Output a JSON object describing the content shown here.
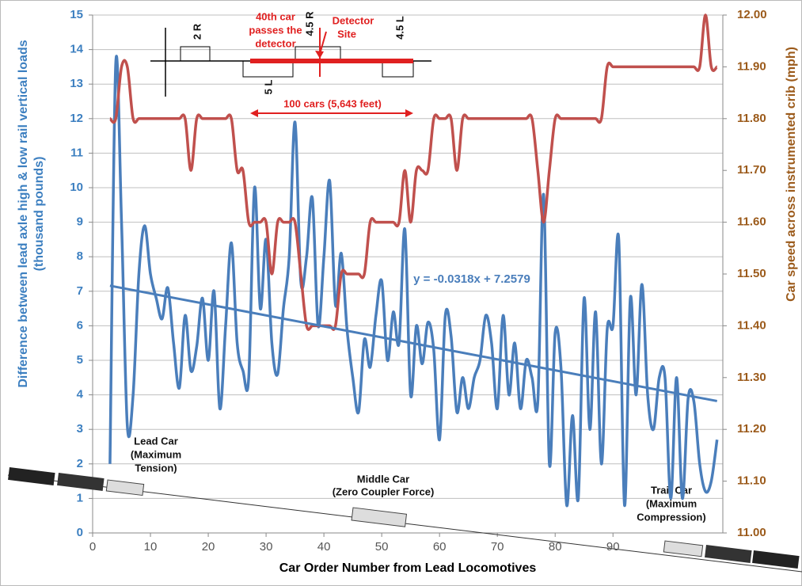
{
  "chart_data": {
    "type": "line",
    "xlabel": "Car Order Number from Lead Locomotives",
    "ylabel": [
      "Difference between lead axle high & low rail vertical loads",
      "(thousand pounds)"
    ],
    "y2label": "Car speed across instrumented crib (mph)",
    "xlim": [
      0,
      109
    ],
    "xticks": [
      0,
      10,
      20,
      30,
      40,
      50,
      60,
      70,
      80,
      90
    ],
    "ylim": [
      0,
      15
    ],
    "yticks": [
      0,
      1,
      2,
      3,
      4,
      5,
      6,
      7,
      8,
      9,
      10,
      11,
      12,
      13,
      14,
      15
    ],
    "y2lim": [
      11,
      12
    ],
    "y2ticks": [
      {
        "value": 11,
        "label": "11.00"
      },
      {
        "value": 11.1,
        "label": "11.10"
      },
      {
        "value": 11.2,
        "label": "11.20"
      },
      {
        "value": 11.3,
        "label": "11.30"
      },
      {
        "value": 11.4,
        "label": "11.40"
      },
      {
        "value": 11.5,
        "label": "11.50"
      },
      {
        "value": 11.6,
        "label": "11.60"
      },
      {
        "value": 11.7,
        "label": "11.70"
      },
      {
        "value": 11.8,
        "label": "11.80"
      },
      {
        "value": 11.9,
        "label": "11.90"
      },
      {
        "value": 12,
        "label": "12.00"
      }
    ],
    "grid": true,
    "x": [
      3,
      4,
      5,
      6,
      7,
      8,
      9,
      10,
      11,
      12,
      13,
      14,
      15,
      16,
      17,
      18,
      19,
      20,
      21,
      22,
      23,
      24,
      25,
      26,
      27,
      28,
      29,
      30,
      31,
      32,
      33,
      34,
      35,
      36,
      37,
      38,
      39,
      40,
      41,
      42,
      43,
      44,
      45,
      46,
      47,
      48,
      49,
      50,
      51,
      52,
      53,
      54,
      55,
      56,
      57,
      58,
      59,
      60,
      61,
      62,
      63,
      64,
      65,
      66,
      67,
      68,
      69,
      70,
      71,
      72,
      73,
      74,
      75,
      76,
      77,
      78,
      79,
      80,
      81,
      82,
      83,
      84,
      85,
      86,
      87,
      88,
      89,
      90,
      91,
      92,
      93,
      94,
      95,
      96,
      97,
      98,
      99,
      100,
      101,
      102,
      103,
      104,
      105,
      106,
      107,
      108
    ],
    "series": [
      {
        "color": "#4a7ebb",
        "values": [
          2.0,
          13.6,
          9.0,
          3.1,
          4.0,
          7.5,
          8.9,
          7.5,
          6.8,
          6.2,
          7.1,
          5.5,
          4.2,
          6.3,
          4.7,
          5.4,
          6.8,
          5.0,
          7.0,
          3.6,
          6.0,
          8.4,
          5.5,
          4.7,
          4.5,
          10.0,
          6.5,
          8.5,
          5.5,
          4.6,
          6.5,
          8.0,
          11.9,
          7.3,
          8.0,
          9.7,
          6.0,
          8.0,
          10.2,
          6.6,
          8.1,
          5.9,
          4.5,
          3.5,
          5.6,
          4.8,
          6.3,
          7.3,
          5.0,
          6.4,
          5.5,
          8.8,
          4.0,
          6.0,
          4.9,
          6.1,
          5.3,
          2.7,
          6.3,
          5.7,
          3.5,
          4.5,
          3.6,
          4.5,
          5.0,
          6.3,
          5.5,
          3.6,
          6.3,
          4.0,
          5.5,
          3.6,
          5.0,
          4.5,
          3.8,
          9.8,
          2.0,
          5.8,
          4.8,
          0.8,
          3.4,
          1.0,
          6.8,
          3.0,
          6.4,
          2.0,
          5.9,
          6.0,
          8.5,
          0.8,
          6.8,
          4.0,
          7.2,
          4.0,
          3.0,
          4.5,
          4.5,
          1.0,
          4.5,
          1.0,
          3.9,
          3.8,
          2.0,
          1.2,
          1.5,
          2.7
        ]
      },
      {
        "color": "#c0504d",
        "axis": "y2",
        "values": [
          11.8,
          11.8,
          11.9,
          11.9,
          11.8,
          11.8,
          11.8,
          11.8,
          11.8,
          11.8,
          11.8,
          11.8,
          11.8,
          11.8,
          11.7,
          11.8,
          11.8,
          11.8,
          11.8,
          11.8,
          11.8,
          11.8,
          11.7,
          11.7,
          11.6,
          11.6,
          11.6,
          11.6,
          11.5,
          11.6,
          11.6,
          11.6,
          11.6,
          11.5,
          11.4,
          11.4,
          11.4,
          11.4,
          11.4,
          11.4,
          11.5,
          11.5,
          11.5,
          11.5,
          11.5,
          11.6,
          11.6,
          11.6,
          11.6,
          11.6,
          11.6,
          11.7,
          11.6,
          11.7,
          11.7,
          11.7,
          11.8,
          11.8,
          11.8,
          11.8,
          11.7,
          11.8,
          11.8,
          11.8,
          11.8,
          11.8,
          11.8,
          11.8,
          11.8,
          11.8,
          11.8,
          11.8,
          11.8,
          11.8,
          11.7,
          11.6,
          11.7,
          11.8,
          11.8,
          11.8,
          11.8,
          11.8,
          11.8,
          11.8,
          11.8,
          11.8,
          11.9,
          11.9,
          11.9,
          11.9,
          11.9,
          11.9,
          11.9,
          11.9,
          11.9,
          11.9,
          11.9,
          11.9,
          11.9,
          11.9,
          11.9,
          11.9,
          11.9,
          12,
          11.9,
          11.9
        ]
      }
    ],
    "trendline": {
      "label": "y = -0.0318x + 7.2579",
      "color": "#4a7ebb",
      "x": [
        3,
        108
      ],
      "values": [
        7.16,
        3.82
      ]
    },
    "annotations": {
      "inset": {
        "r2": "2 R",
        "l5": "5 L",
        "r45": "4.5 R",
        "l45": "4.5 L",
        "car40": [
          "40th car",
          "passes the",
          "detector"
        ],
        "detector": [
          "Detector",
          "Site"
        ],
        "span": "100 cars (5,643 feet)"
      },
      "lead": [
        "Lead Car",
        "(Maximum",
        "Tension)"
      ],
      "middle": [
        "Middle Car",
        "(Zero Coupler Force)"
      ],
      "trail": [
        "Trail Car",
        "(Maximum",
        "Compression)"
      ]
    }
  }
}
